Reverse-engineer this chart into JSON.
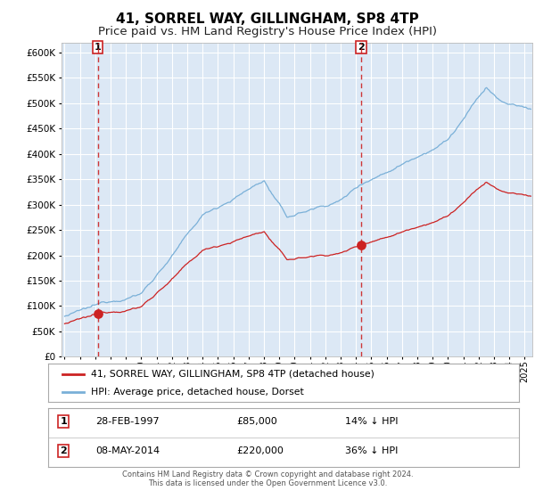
{
  "title": "41, SORREL WAY, GILLINGHAM, SP8 4TP",
  "subtitle": "Price paid vs. HM Land Registry's House Price Index (HPI)",
  "background_color": "#ffffff",
  "plot_bg_color": "#dce8f5",
  "grid_color": "#ffffff",
  "hpi_color": "#7ab0d8",
  "property_color": "#cc2222",
  "sale1_date_num": 1997.16,
  "sale1_price": 85000,
  "sale2_date_num": 2014.35,
  "sale2_price": 220000,
  "ylim": [
    0,
    620000
  ],
  "xlim_start": 1994.8,
  "xlim_end": 2025.5,
  "legend_label1": "41, SORREL WAY, GILLINGHAM, SP8 4TP (detached house)",
  "legend_label2": "HPI: Average price, detached house, Dorset",
  "footer_line1": "Contains HM Land Registry data © Crown copyright and database right 2024.",
  "footer_line2": "This data is licensed under the Open Government Licence v3.0.",
  "table_row1": [
    "1",
    "28-FEB-1997",
    "£85,000",
    "14% ↓ HPI"
  ],
  "table_row2": [
    "2",
    "08-MAY-2014",
    "£220,000",
    "36% ↓ HPI"
  ],
  "title_fontsize": 11,
  "subtitle_fontsize": 9.5
}
